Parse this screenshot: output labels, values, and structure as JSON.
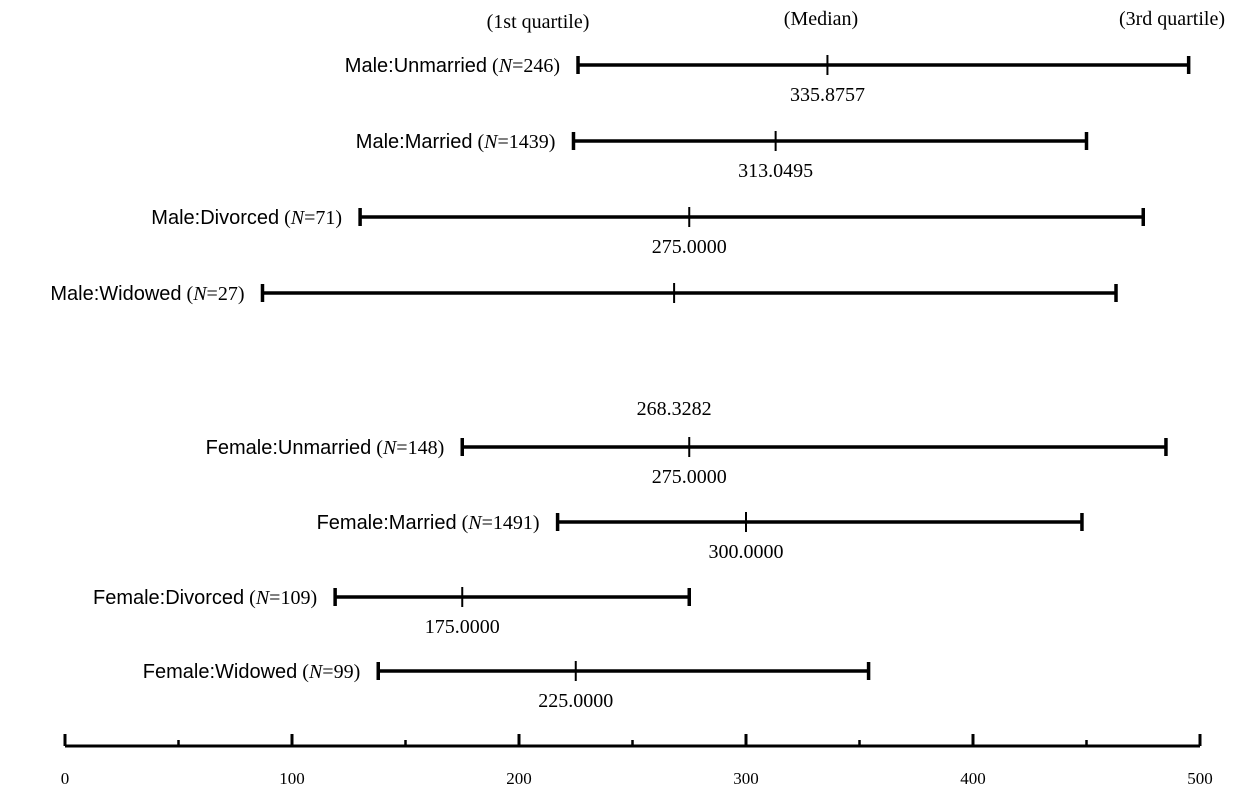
{
  "chart_data": {
    "type": "interval",
    "header": {
      "q1": "(1st quartile)",
      "median": "(Median)",
      "q3": "(3rd quartile)"
    },
    "x_axis": {
      "xlim": [
        0,
        500
      ],
      "major_ticks": [
        0,
        100,
        200,
        300,
        400,
        500
      ],
      "tick_labels": [
        "0",
        "100",
        "200",
        "300",
        "400",
        "500"
      ],
      "minor_ticks": [
        50,
        150,
        250,
        350,
        450
      ]
    },
    "rows": [
      {
        "group": "Male:Unmarried",
        "n_prefix": " (",
        "n_var": "N",
        "n_eq": "=",
        "n": "246",
        "n_suffix": ")",
        "q1": 226,
        "median": 335.8757,
        "q3": 495,
        "median_label": "335.8757",
        "label_position": "below"
      },
      {
        "group": "Male:Married",
        "n_prefix": " (",
        "n_var": "N",
        "n_eq": "=",
        "n": "1439",
        "n_suffix": ")",
        "q1": 224,
        "median": 313.0495,
        "q3": 450,
        "median_label": "313.0495",
        "label_position": "below"
      },
      {
        "group": "Male:Divorced",
        "n_prefix": " (",
        "n_var": "N",
        "n_eq": "=",
        "n": "71",
        "n_suffix": ")",
        "q1": 130,
        "median": 275,
        "q3": 475,
        "median_label": "275.0000",
        "label_position": "below"
      },
      {
        "group": "Male:Widowed",
        "n_prefix": " (",
        "n_var": "N",
        "n_eq": "=",
        "n": "27",
        "n_suffix": ")",
        "q1": 87,
        "median": 268.3282,
        "q3": 463,
        "median_label": "268.3282",
        "label_position": "below-far"
      },
      {
        "group": "Female:Unmarried",
        "n_prefix": " (",
        "n_var": "N",
        "n_eq": "=",
        "n": "148",
        "n_suffix": ")",
        "q1": 175,
        "median": 275,
        "q3": 485,
        "median_label": "275.0000",
        "label_position": "below"
      },
      {
        "group": "Female:Married",
        "n_prefix": " (",
        "n_var": "N",
        "n_eq": "=",
        "n": "1491",
        "n_suffix": ")",
        "q1": 217,
        "median": 300,
        "q3": 448,
        "median_label": "300.0000",
        "label_position": "below"
      },
      {
        "group": "Female:Divorced",
        "n_prefix": " (",
        "n_var": "N",
        "n_eq": "=",
        "n": "109",
        "n_suffix": ")",
        "q1": 119,
        "median": 175,
        "q3": 275,
        "median_label": "175.0000",
        "label_position": "below"
      },
      {
        "group": "Female:Widowed",
        "n_prefix": " (",
        "n_var": "N",
        "n_eq": "=",
        "n": "99",
        "n_suffix": ")",
        "q1": 138,
        "median": 225,
        "q3": 354,
        "median_label": "225.0000",
        "label_position": "below"
      }
    ]
  }
}
